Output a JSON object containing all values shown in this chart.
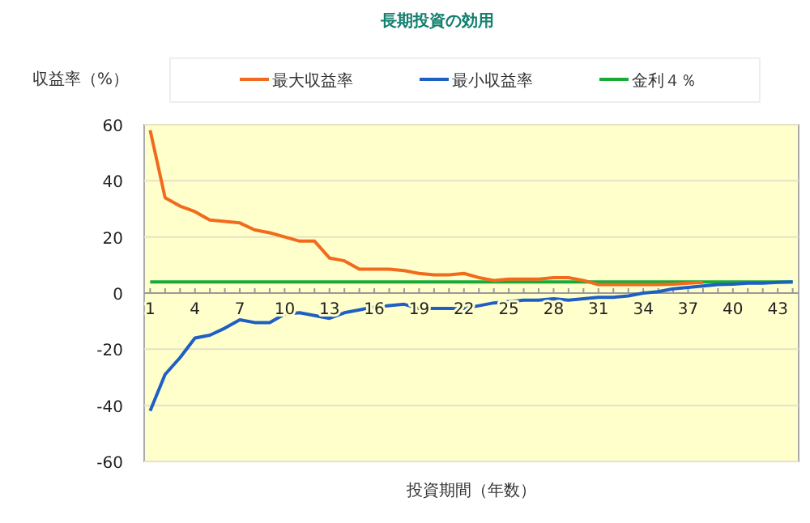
{
  "chart_data": {
    "type": "line",
    "title": "長期投資の効用",
    "xlabel": "投資期間（年数）",
    "ylabel": "収益率（%）",
    "categories": [
      "1",
      null,
      null,
      "4",
      null,
      null,
      "7",
      null,
      null,
      "10",
      null,
      null,
      "13",
      null,
      null,
      "16",
      null,
      null,
      "19",
      null,
      null,
      "22",
      null,
      null,
      "25",
      null,
      null,
      "28",
      null,
      null,
      "31",
      null,
      null,
      "34",
      null,
      null,
      "37",
      null,
      null,
      "40",
      null,
      null,
      "43",
      null
    ],
    "series": [
      {
        "name": "最大収益率",
        "color": "#f26b1d",
        "values": [
          58,
          34,
          31,
          29,
          26,
          25.5,
          25,
          22.5,
          21.5,
          20,
          18.5,
          18.5,
          12.5,
          11.5,
          8.5,
          8.5,
          8.5,
          8,
          7,
          6.5,
          6.5,
          7,
          5.5,
          4.5,
          5,
          5,
          5,
          5.5,
          5.5,
          4.5,
          3,
          3,
          3,
          3,
          3,
          3.2,
          3.5,
          3.8,
          null,
          null,
          null,
          null,
          null,
          null
        ]
      },
      {
        "name": "最小収益率",
        "color": "#1f5fc4",
        "values": [
          -42,
          -29,
          -23,
          -16,
          -15,
          -12.5,
          -9.5,
          -10.5,
          -10.5,
          -7.5,
          -7,
          -8,
          -9,
          -7,
          -6,
          -5,
          -4.5,
          -4,
          -5.5,
          -5.5,
          -5.5,
          -5.5,
          -4.5,
          -3.5,
          -3,
          -2.5,
          -2.5,
          -2,
          -2.5,
          -2,
          -1.5,
          -1.5,
          -1,
          0,
          0.5,
          1.5,
          2,
          2.5,
          3,
          3.2,
          3.5,
          3.5,
          3.8,
          4
        ]
      },
      {
        "name": "金利４％",
        "color": "#1aaa3a",
        "values": [
          4,
          4,
          4,
          4,
          4,
          4,
          4,
          4,
          4,
          4,
          4,
          4,
          4,
          4,
          4,
          4,
          4,
          4,
          4,
          4,
          4,
          4,
          4,
          4,
          4,
          4,
          4,
          4,
          4,
          4,
          4,
          4,
          4,
          4,
          4,
          4,
          4,
          4,
          4,
          4,
          4,
          4,
          4,
          4
        ]
      }
    ],
    "ylim": [
      -60,
      60
    ],
    "yticks": [
      -60,
      -40,
      -20,
      0,
      20,
      40,
      60
    ],
    "grid": "y",
    "legend": "top",
    "marker": "none",
    "line_style": "solid"
  }
}
